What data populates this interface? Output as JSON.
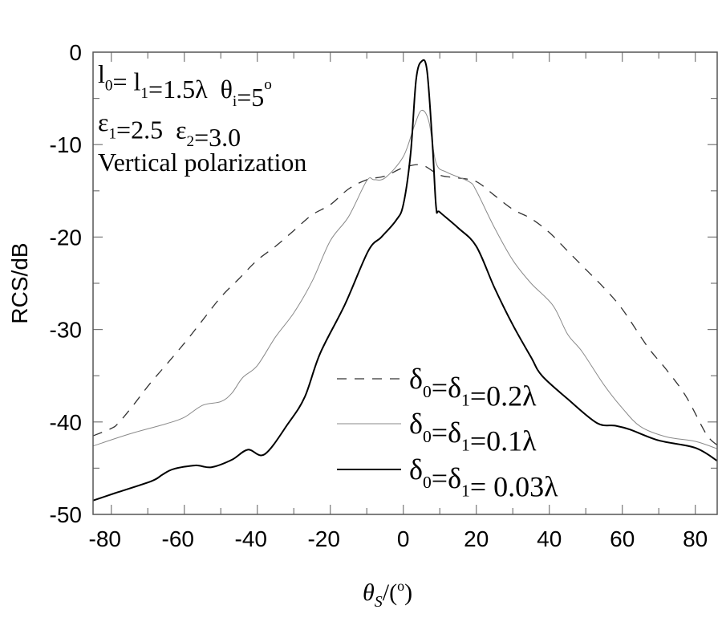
{
  "chart_data": {
    "type": "line",
    "title": "",
    "xlabel": {
      "symbol": "θ",
      "sub": "S",
      "rest": "/(",
      "unit": "o",
      "close": ")"
    },
    "ylabel": "RCS/dB",
    "xlim": [
      -85,
      86
    ],
    "ylim": [
      -50,
      0
    ],
    "xticks": [
      -80,
      -60,
      -40,
      -20,
      0,
      20,
      40,
      60,
      80
    ],
    "yticks": [
      0,
      -10,
      -20,
      -30,
      -40,
      -50
    ],
    "grid": false,
    "legend_position": "bottom-center",
    "annotations": [
      [
        {
          "t": "l"
        },
        {
          "s": "0"
        },
        {
          "t": "= l"
        },
        {
          "s": "1"
        },
        {
          "t": "=1.5λ  θ"
        },
        {
          "s": "i"
        },
        {
          "t": "=5"
        },
        {
          "p": "o"
        }
      ],
      [
        {
          "t": "ε"
        },
        {
          "s": "1"
        },
        {
          "t": "=2.5  ε"
        },
        {
          "s": "2"
        },
        {
          "t": "=3.0"
        }
      ],
      [
        {
          "t": "Vertical polarization"
        }
      ]
    ],
    "series": [
      {
        "name": "δ0=δ1=0.2λ",
        "label": [
          {
            "t": "δ"
          },
          {
            "s": "0"
          },
          {
            "t": "=δ"
          },
          {
            "s": "1"
          },
          {
            "t": "=0.2λ"
          }
        ],
        "style": "dashed",
        "color": "#333333",
        "x": [
          -85,
          -80,
          -78,
          -74,
          -69.5,
          -64.5,
          -59.6,
          -55,
          -50,
          -45,
          -40,
          -35,
          -30,
          -25,
          -20,
          -15,
          -10,
          -5,
          0,
          5,
          10,
          15,
          20,
          25,
          30,
          35,
          40,
          45,
          50,
          55,
          60,
          67,
          72,
          77.4,
          83,
          86
        ],
        "y": [
          -41.5,
          -40.7,
          -40.1,
          -38.2,
          -35.9,
          -33.6,
          -31.3,
          -29,
          -26.5,
          -24.5,
          -22.5,
          -21,
          -19.3,
          -17.6,
          -16.5,
          -14.8,
          -13.8,
          -13.4,
          -12.5,
          -12.2,
          -13.3,
          -13.6,
          -14,
          -15.5,
          -17,
          -18,
          -19.5,
          -21.5,
          -23.5,
          -25.5,
          -27.8,
          -31.9,
          -34.3,
          -37.2,
          -41.3,
          -42.5
        ]
      },
      {
        "name": "δ0=δ1=0.1λ",
        "label": [
          {
            "t": "δ"
          },
          {
            "s": "0"
          },
          {
            "t": "=δ"
          },
          {
            "s": "1"
          },
          {
            "t": "=0.1λ"
          }
        ],
        "style": "thin",
        "color": "#8a8a8a",
        "x": [
          -85,
          -75,
          -65,
          -60,
          -55,
          -50,
          -47,
          -44,
          -40,
          -35,
          -30,
          -25,
          -20,
          -15,
          -10,
          -8,
          -5,
          0,
          3,
          5,
          7,
          9,
          12,
          18,
          20,
          25,
          30,
          35,
          41,
          45,
          49,
          55,
          60,
          65,
          72,
          80,
          86
        ],
        "y": [
          -42.6,
          -41.3,
          -40.2,
          -39.5,
          -38.2,
          -37.8,
          -36.9,
          -35.2,
          -33.9,
          -30.8,
          -28.2,
          -24.8,
          -20.4,
          -17.8,
          -13.9,
          -13.8,
          -13.6,
          -11.3,
          -8,
          -6.3,
          -7.5,
          -12,
          -13,
          -14,
          -15,
          -19,
          -22.5,
          -25,
          -27.4,
          -30.5,
          -32.4,
          -36,
          -38.5,
          -40.5,
          -41.6,
          -42.1,
          -42.9
        ]
      },
      {
        "name": "δ0=δ1=0.03λ",
        "label": [
          {
            "t": "δ"
          },
          {
            "s": "0"
          },
          {
            "t": "=δ"
          },
          {
            "s": "1"
          },
          {
            "t": "= 0.03λ"
          }
        ],
        "style": "solid",
        "color": "#000000",
        "x": [
          -85,
          -79,
          -69,
          -66,
          -63,
          -57,
          -52.6,
          -47,
          -42.6,
          -38,
          -31.6,
          -27,
          -22.8,
          -16,
          -9.6,
          -6,
          -2,
          0,
          2,
          3.5,
          5,
          6.5,
          8,
          9,
          10,
          15,
          20,
          25,
          30,
          35,
          38,
          45,
          53,
          58,
          62,
          70,
          80,
          86
        ],
        "y": [
          -48.5,
          -47.7,
          -46.4,
          -45.7,
          -45.1,
          -44.7,
          -44.9,
          -44.1,
          -43,
          -43.5,
          -40.2,
          -37.3,
          -32.6,
          -27.3,
          -21.5,
          -20,
          -18.2,
          -16.5,
          -11,
          -3,
          -1,
          -2,
          -10,
          -16.8,
          -17.3,
          -19,
          -21,
          -25.5,
          -29.5,
          -33,
          -35,
          -37.5,
          -40.1,
          -40.4,
          -40.8,
          -42,
          -42.8,
          -44.2
        ]
      }
    ]
  }
}
